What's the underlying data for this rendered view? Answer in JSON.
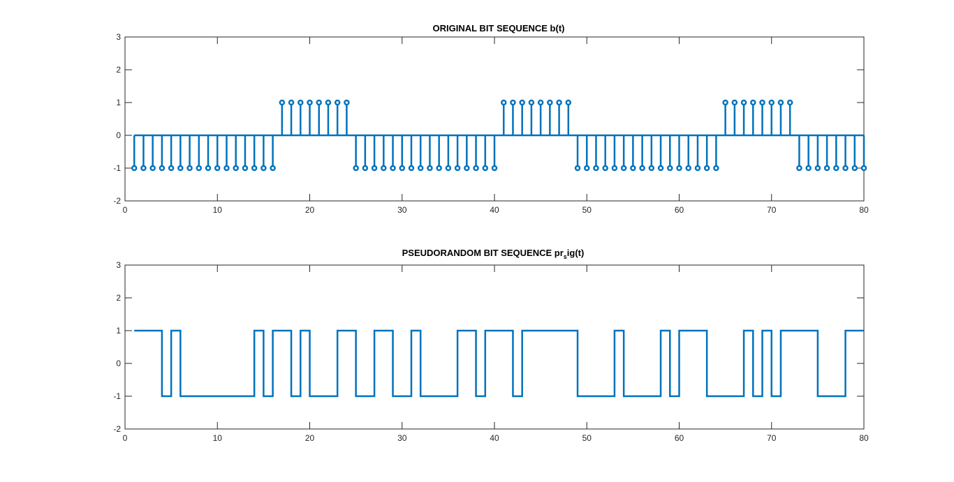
{
  "colors": {
    "series": "#0072BD",
    "axis": "#262626",
    "background": "#ffffff"
  },
  "chart_data": [
    {
      "type": "stem",
      "title": "ORIGINAL BIT SEQUENCE b(t)",
      "xlim": [
        0,
        80
      ],
      "ylim": [
        -2,
        3
      ],
      "xticks": [
        0,
        10,
        20,
        30,
        40,
        50,
        60,
        70,
        80
      ],
      "yticks": [
        -2,
        -1,
        0,
        1,
        2,
        3
      ],
      "xtick_labels": [
        "0",
        "10",
        "20",
        "30",
        "40",
        "50",
        "60",
        "70",
        "80"
      ],
      "ytick_labels": [
        "-2",
        "-1",
        "0",
        "1",
        "2",
        "3"
      ],
      "grid": false,
      "x": [
        1,
        2,
        3,
        4,
        5,
        6,
        7,
        8,
        9,
        10,
        11,
        12,
        13,
        14,
        15,
        16,
        17,
        18,
        19,
        20,
        21,
        22,
        23,
        24,
        25,
        26,
        27,
        28,
        29,
        30,
        31,
        32,
        33,
        34,
        35,
        36,
        37,
        38,
        39,
        40,
        41,
        42,
        43,
        44,
        45,
        46,
        47,
        48,
        49,
        50,
        51,
        52,
        53,
        54,
        55,
        56,
        57,
        58,
        59,
        60,
        61,
        62,
        63,
        64,
        65,
        66,
        67,
        68,
        69,
        70,
        71,
        72,
        73,
        74,
        75,
        76,
        77,
        78,
        79,
        80
      ],
      "y": [
        -1,
        -1,
        -1,
        -1,
        -1,
        -1,
        -1,
        -1,
        -1,
        -1,
        -1,
        -1,
        -1,
        -1,
        -1,
        -1,
        1,
        1,
        1,
        1,
        1,
        1,
        1,
        1,
        -1,
        -1,
        -1,
        -1,
        -1,
        -1,
        -1,
        -1,
        -1,
        -1,
        -1,
        -1,
        -1,
        -1,
        -1,
        -1,
        1,
        1,
        1,
        1,
        1,
        1,
        1,
        1,
        -1,
        -1,
        -1,
        -1,
        -1,
        -1,
        -1,
        -1,
        -1,
        -1,
        -1,
        -1,
        -1,
        -1,
        -1,
        -1,
        1,
        1,
        1,
        1,
        1,
        1,
        1,
        1,
        -1,
        -1,
        -1,
        -1,
        -1,
        -1,
        -1,
        -1
      ]
    },
    {
      "type": "stairs",
      "title_main": "PSEUDORANDOM BIT SEQUENCE pr",
      "title_sub": "s",
      "title_tail": "ig(t)",
      "xlim": [
        0,
        80
      ],
      "ylim": [
        -2,
        3
      ],
      "xticks": [
        0,
        10,
        20,
        30,
        40,
        50,
        60,
        70,
        80
      ],
      "yticks": [
        -2,
        -1,
        0,
        1,
        2,
        3
      ],
      "xtick_labels": [
        "0",
        "10",
        "20",
        "30",
        "40",
        "50",
        "60",
        "70",
        "80"
      ],
      "ytick_labels": [
        "-2",
        "-1",
        "0",
        "1",
        "2",
        "3"
      ],
      "grid": false,
      "x": [
        1,
        2,
        3,
        4,
        5,
        6,
        7,
        8,
        9,
        10,
        11,
        12,
        13,
        14,
        15,
        16,
        17,
        18,
        19,
        20,
        21,
        22,
        23,
        24,
        25,
        26,
        27,
        28,
        29,
        30,
        31,
        32,
        33,
        34,
        35,
        36,
        37,
        38,
        39,
        40,
        41,
        42,
        43,
        44,
        45,
        46,
        47,
        48,
        49,
        50,
        51,
        52,
        53,
        54,
        55,
        56,
        57,
        58,
        59,
        60,
        61,
        62,
        63,
        64,
        65,
        66,
        67,
        68,
        69,
        70,
        71,
        72,
        73,
        74,
        75,
        76,
        77,
        78,
        79,
        80
      ],
      "y": [
        1,
        1,
        1,
        -1,
        1,
        -1,
        -1,
        -1,
        -1,
        -1,
        -1,
        -1,
        -1,
        1,
        -1,
        1,
        1,
        -1,
        1,
        -1,
        -1,
        -1,
        1,
        1,
        -1,
        -1,
        1,
        1,
        -1,
        -1,
        1,
        -1,
        -1,
        -1,
        -1,
        1,
        1,
        -1,
        1,
        1,
        1,
        -1,
        1,
        1,
        1,
        1,
        1,
        1,
        -1,
        -1,
        -1,
        -1,
        1,
        -1,
        -1,
        -1,
        -1,
        1,
        -1,
        1,
        1,
        1,
        -1,
        -1,
        -1,
        -1,
        1,
        -1,
        1,
        -1,
        1,
        1,
        1,
        1,
        -1,
        -1,
        -1,
        1,
        1,
        1
      ]
    }
  ]
}
